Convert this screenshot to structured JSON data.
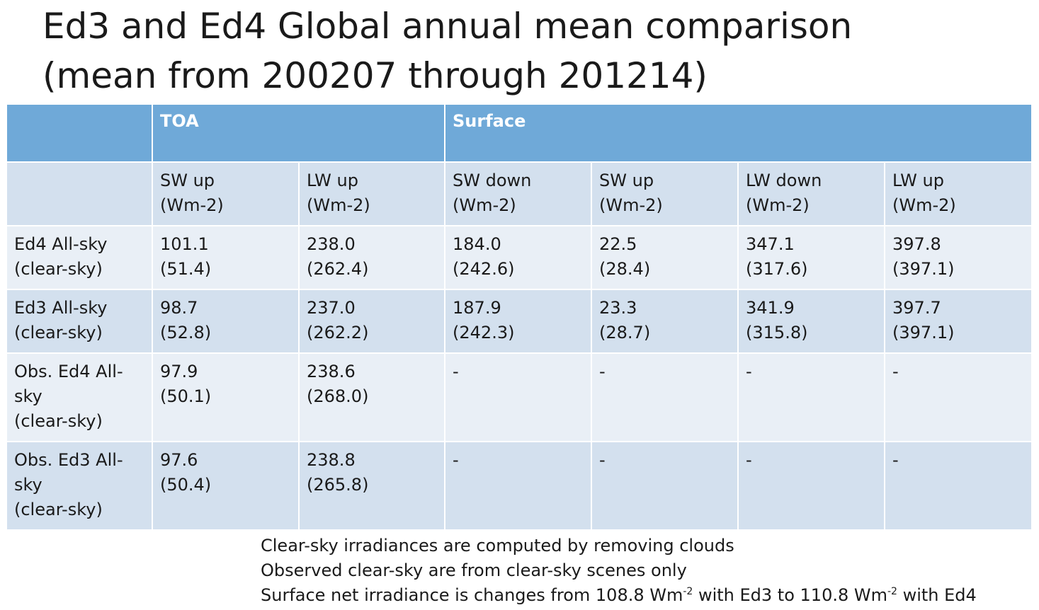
{
  "title": {
    "line1": "Ed3 and Ed4 Global annual mean comparison",
    "line2": "(mean from 200207 through 201214)"
  },
  "table": {
    "group_headers": {
      "empty": "",
      "toa": "TOA",
      "surface": "Surface"
    },
    "columns": [
      {
        "name": "SW up",
        "unit": "(Wm-2)"
      },
      {
        "name": "LW up",
        "unit": "(Wm-2)"
      },
      {
        "name": "SW down",
        "unit": "(Wm-2)"
      },
      {
        "name": "SW up",
        "unit": "(Wm-2)"
      },
      {
        "name": "LW down",
        "unit": "(Wm-2)"
      },
      {
        "name": "LW up",
        "unit": "(Wm-2)"
      }
    ],
    "rows": [
      {
        "label": [
          "Ed4 All-sky",
          "(clear-sky)"
        ],
        "cells": [
          [
            "101.1",
            "(51.4)"
          ],
          [
            "238.0",
            "(262.4)"
          ],
          [
            "184.0",
            "(242.6)"
          ],
          [
            "22.5",
            "(28.4)"
          ],
          [
            "347.1",
            "(317.6)"
          ],
          [
            "397.8",
            "(397.1)"
          ]
        ]
      },
      {
        "label": [
          "Ed3 All-sky",
          "(clear-sky)"
        ],
        "cells": [
          [
            "98.7",
            "(52.8)"
          ],
          [
            "237.0",
            "(262.2)"
          ],
          [
            "187.9",
            "(242.3)"
          ],
          [
            "23.3",
            "(28.7)"
          ],
          [
            "341.9",
            "(315.8)"
          ],
          [
            "397.7",
            "(397.1)"
          ]
        ]
      },
      {
        "label": [
          "Obs. Ed4 All-",
          "sky",
          "(clear-sky)"
        ],
        "cells": [
          [
            "97.9",
            "(50.1)"
          ],
          [
            "238.6",
            "(268.0)"
          ],
          [
            "-"
          ],
          [
            "-"
          ],
          [
            "-"
          ],
          [
            "-"
          ]
        ]
      },
      {
        "label": [
          "Obs. Ed3 All-",
          "sky",
          "(clear-sky)"
        ],
        "cells": [
          [
            "97.6",
            "(50.4)"
          ],
          [
            "238.8",
            "(265.8)"
          ],
          [
            "-"
          ],
          [
            "-"
          ],
          [
            "-"
          ],
          [
            "-"
          ]
        ]
      }
    ]
  },
  "notes": {
    "line1": "Clear-sky irradiances are computed by removing clouds",
    "line2": "Observed clear-sky are from clear-sky scenes only",
    "line3_a": "Surface net irradiance is changes from 108.8 Wm",
    "line3_sup1": "-2",
    "line3_b": " with Ed3 to 110.8 Wm",
    "line3_sup2": "-2",
    "line3_c": " with Ed4"
  }
}
